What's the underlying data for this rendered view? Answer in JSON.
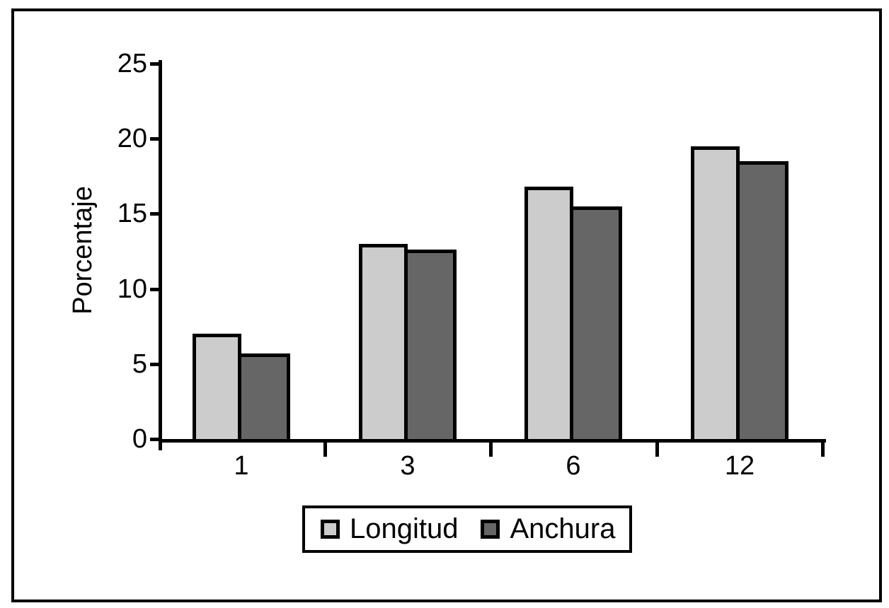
{
  "chart_data": {
    "type": "bar",
    "title": "",
    "xlabel": "",
    "ylabel": "Porcentaje",
    "categories": [
      "1",
      "3",
      "6",
      "12"
    ],
    "series": [
      {
        "name": "Longitud",
        "color": "#cccccc",
        "values": [
          7.0,
          13.0,
          16.8,
          19.5
        ]
      },
      {
        "name": "Anchura",
        "color": "#666666",
        "values": [
          5.7,
          12.6,
          15.5,
          18.5
        ]
      }
    ],
    "ylim": [
      0,
      25
    ],
    "yticks": [
      0,
      5,
      10,
      15,
      20,
      25
    ],
    "grid": false,
    "legend_position": "bottom",
    "axis_color": "#000000",
    "bar_border_color": "#000000",
    "background_color": "#ffffff"
  }
}
